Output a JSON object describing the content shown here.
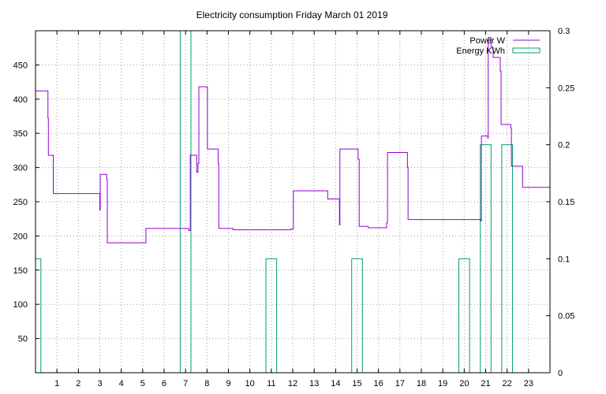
{
  "chart_data": {
    "type": "line",
    "title": "Electricity consumption Friday March 01 2019",
    "x_ticks": [
      "1",
      "2",
      "3",
      "4",
      "5",
      "6",
      "7",
      "8",
      "9",
      "10",
      "11",
      "12",
      "13",
      "14",
      "15",
      "16",
      "17",
      "18",
      "19",
      "20",
      "21",
      "22",
      "23"
    ],
    "xlim": [
      0,
      24
    ],
    "y_left": {
      "ylim": [
        0,
        500
      ],
      "ticks": [
        "50",
        "100",
        "150",
        "200",
        "250",
        "300",
        "350",
        "400",
        "450"
      ]
    },
    "y_right": {
      "ylim": [
        0,
        0.3
      ],
      "ticks": [
        "0",
        "0.05",
        "0.1",
        "0.15",
        "0.2",
        "0.25",
        "0.3"
      ]
    },
    "grid": true,
    "legend_position": "top-right",
    "colors": {
      "power": "#9400d3",
      "energy": "#009e73"
    },
    "series": [
      {
        "name": "Power W",
        "axis": "left",
        "style": "step",
        "points": [
          [
            0,
            412
          ],
          [
            0.55,
            412
          ],
          [
            0.58,
            372
          ],
          [
            0.6,
            318
          ],
          [
            0.8,
            318
          ],
          [
            0.83,
            262
          ],
          [
            2.98,
            262
          ],
          [
            3.0,
            238
          ],
          [
            3.02,
            290
          ],
          [
            3.3,
            290
          ],
          [
            3.32,
            283
          ],
          [
            3.35,
            190
          ],
          [
            5.12,
            190
          ],
          [
            5.15,
            211
          ],
          [
            7.12,
            211
          ],
          [
            7.15,
            208
          ],
          [
            7.22,
            318
          ],
          [
            7.5,
            318
          ],
          [
            7.52,
            293
          ],
          [
            7.58,
            306
          ],
          [
            7.62,
            418
          ],
          [
            8.0,
            418
          ],
          [
            8.02,
            327
          ],
          [
            8.5,
            327
          ],
          [
            8.52,
            306
          ],
          [
            8.55,
            211
          ],
          [
            9.2,
            211
          ],
          [
            9.22,
            209
          ],
          [
            11.9,
            209
          ],
          [
            11.92,
            210
          ],
          [
            12.0,
            210
          ],
          [
            12.03,
            266
          ],
          [
            13.6,
            266
          ],
          [
            13.63,
            254
          ],
          [
            14.15,
            254
          ],
          [
            14.18,
            216
          ],
          [
            14.2,
            327
          ],
          [
            15.02,
            327
          ],
          [
            15.05,
            312
          ],
          [
            15.1,
            214
          ],
          [
            15.5,
            214
          ],
          [
            15.52,
            212
          ],
          [
            16.35,
            212
          ],
          [
            16.38,
            219
          ],
          [
            16.42,
            322
          ],
          [
            17.3,
            322
          ],
          [
            17.35,
            300
          ],
          [
            17.38,
            224
          ],
          [
            20.75,
            224
          ],
          [
            20.77,
            222
          ],
          [
            20.8,
            346
          ],
          [
            21.08,
            346
          ],
          [
            21.1,
            343
          ],
          [
            21.12,
            490
          ],
          [
            21.2,
            490
          ],
          [
            21.25,
            476
          ],
          [
            21.32,
            476
          ],
          [
            21.35,
            461
          ],
          [
            21.65,
            461
          ],
          [
            21.68,
            441
          ],
          [
            21.72,
            363
          ],
          [
            22.15,
            363
          ],
          [
            22.17,
            358
          ],
          [
            22.2,
            302
          ],
          [
            22.7,
            302
          ],
          [
            22.72,
            271
          ],
          [
            24.0,
            271
          ]
        ]
      },
      {
        "name": "Energy KWh",
        "axis": "right",
        "style": "boxes",
        "bars": [
          {
            "x": 0,
            "value": 0.1
          },
          {
            "x": 7,
            "value": 0.3
          },
          {
            "x": 11,
            "value": 0.1
          },
          {
            "x": 15,
            "value": 0.1
          },
          {
            "x": 20,
            "value": 0.1
          },
          {
            "x": 21,
            "value": 0.2
          },
          {
            "x": 22,
            "value": 0.2
          }
        ]
      }
    ]
  }
}
